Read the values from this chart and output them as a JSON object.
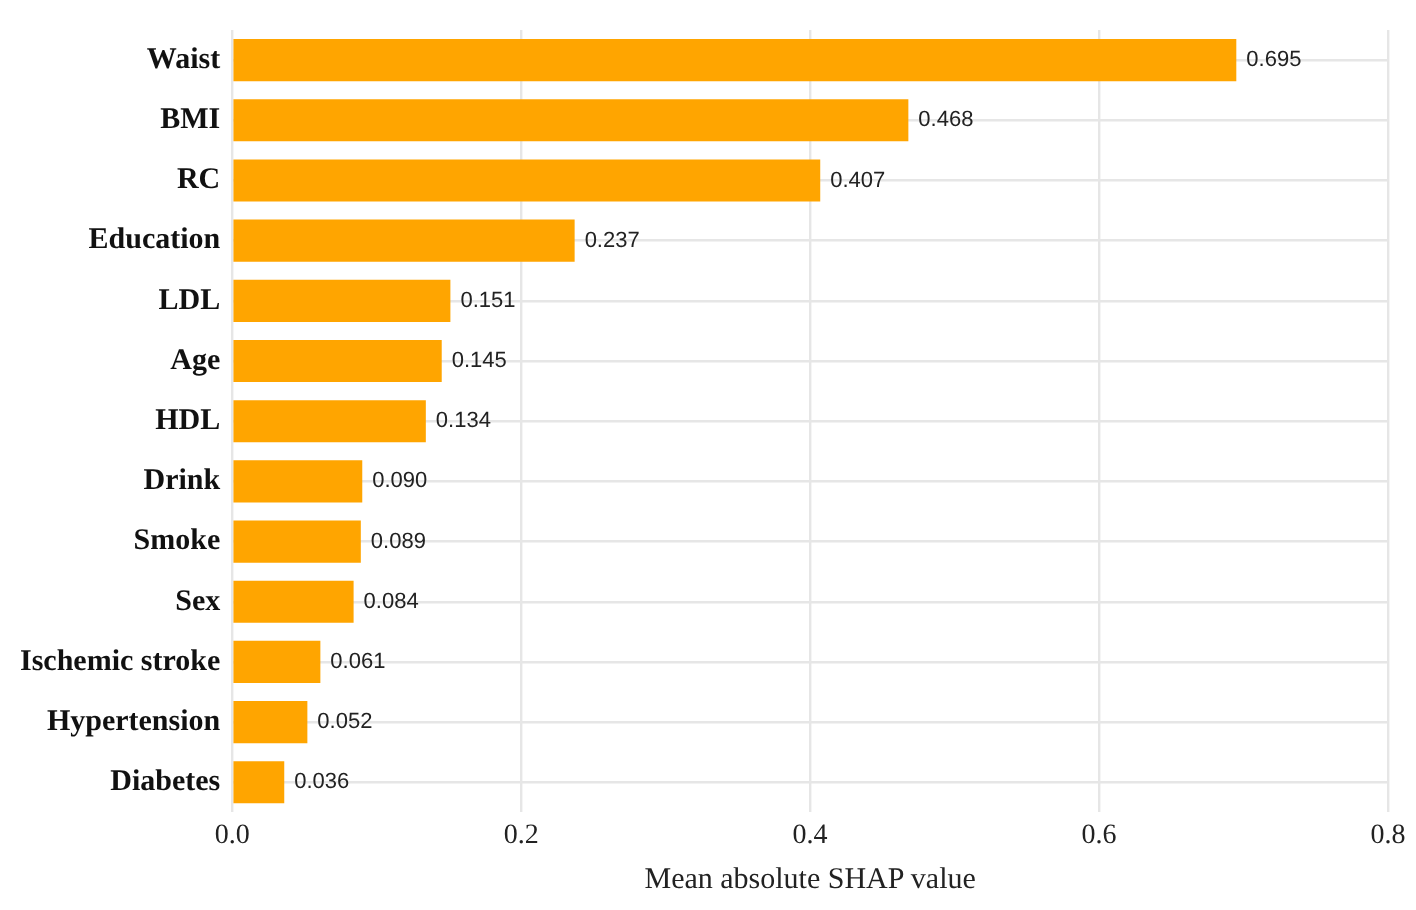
{
  "chart_data": {
    "type": "bar",
    "orientation": "horizontal",
    "xlabel": "Mean absolute SHAP value",
    "categories": [
      "Waist",
      "BMI",
      "RC",
      "Education",
      "LDL",
      "Age",
      "HDL",
      "Drink",
      "Smoke",
      "Sex",
      "Ischemic stroke",
      "Hypertension",
      "Diabetes"
    ],
    "values": [
      0.695,
      0.468,
      0.407,
      0.237,
      0.151,
      0.145,
      0.134,
      0.09,
      0.089,
      0.084,
      0.061,
      0.052,
      0.036
    ],
    "value_labels": [
      "0.695",
      "0.468",
      "0.407",
      "0.237",
      "0.151",
      "0.145",
      "0.134",
      "0.090",
      "0.089",
      "0.084",
      "0.061",
      "0.052",
      "0.036"
    ],
    "color": "#ffa500",
    "xlim": [
      0,
      0.8
    ],
    "xticks": [
      {
        "value": 0,
        "label": "0.0"
      },
      {
        "value": 0.2,
        "label": "0.2"
      },
      {
        "value": 0.4,
        "label": "0.4"
      },
      {
        "value": 0.6,
        "label": "0.6"
      },
      {
        "value": 0.8,
        "label": "0.8"
      }
    ],
    "grid": true,
    "legend": false
  }
}
